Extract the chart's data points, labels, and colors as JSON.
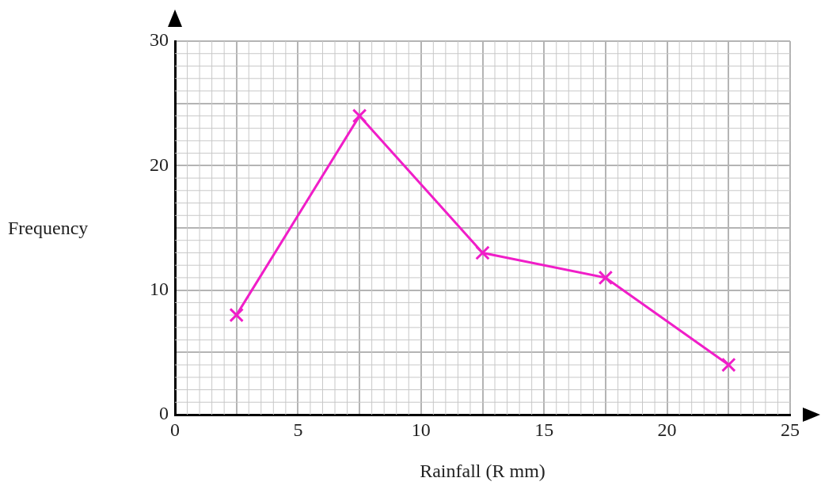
{
  "chart_data": {
    "type": "line",
    "xlabel": "Rainfall (R mm)",
    "ylabel": "Frequency",
    "x": [
      2.5,
      7.5,
      12.5,
      17.5,
      22.5
    ],
    "series": [
      {
        "color": "#f01ec8",
        "values": [
          8,
          24,
          13,
          11,
          4
        ]
      }
    ],
    "xlim": [
      0,
      25
    ],
    "ylim": [
      0,
      30
    ],
    "xticks": [
      0,
      {
        "value": 2.5,
        "label": null
      },
      5,
      {
        "value": 7.5,
        "label": null
      },
      10,
      {
        "value": 12.5,
        "label": null
      },
      15,
      {
        "value": 17.5,
        "label": null
      },
      20,
      {
        "value": 22.5,
        "label": null
      },
      25
    ],
    "yticks": [
      0,
      {
        "value": 5,
        "label": null
      },
      10,
      {
        "value": 15,
        "label": null
      },
      20,
      {
        "value": 25,
        "label": null
      },
      30
    ],
    "grid": true,
    "legend": false,
    "marker": "cross",
    "line_style": "solid"
  }
}
